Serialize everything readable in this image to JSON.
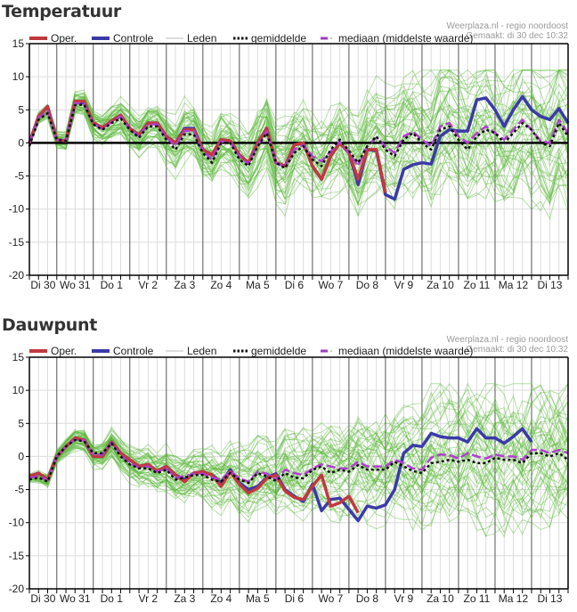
{
  "charts": [
    {
      "title": "Temperatuur",
      "credits": [
        "Weerplaza.nl - regio noordoost",
        "Gemaakt: di 30 dec 10:32"
      ]
    },
    {
      "title": "Dauwpunt",
      "credits": [
        "Weerplaza.nl - regio noordoost",
        "Gemaakt: di 30 dec 10:32"
      ]
    }
  ],
  "legend": [
    {
      "label": "Oper.",
      "color": "#c0393f",
      "style": "solid-thick"
    },
    {
      "label": "Controle",
      "color": "#3b3aa8",
      "style": "solid-thick"
    },
    {
      "label": "Leden",
      "color": "#bcbcbc",
      "style": "thin"
    },
    {
      "label": "gemiddelde",
      "color": "#111111",
      "style": "dotted"
    },
    {
      "label": "mediaan (middelste waarde)",
      "color": "#a03cc0",
      "style": "dashed"
    }
  ],
  "colors": {
    "oper": "#c0393f",
    "controle": "#3b3aa8",
    "leden": "#5cb83a",
    "gemiddelde": "#111111",
    "mediaan": "#b13fd0",
    "grid_minor": "#dcdcdc",
    "grid_major": "#555555"
  },
  "chart_data": [
    {
      "type": "line",
      "title": "Temperatuur",
      "xlabel": "",
      "ylabel": "",
      "ylim": [
        -20,
        15
      ],
      "yticks": [
        15,
        10,
        5,
        0,
        -5,
        -10,
        -15,
        -20
      ],
      "x_step_hours": 6,
      "day_labels": [
        "Di 30",
        "Wo 31",
        "Do 1",
        "Vr 2",
        "Za 3",
        "Zo 4",
        "Ma 5",
        "Di 6",
        "Wo 7",
        "Do 8",
        "Vr 9",
        "Za 10",
        "Zo 11",
        "Ma 12",
        "Di 13"
      ],
      "legend_position": "top",
      "grid": true,
      "series": [
        {
          "name": "Oper.",
          "values": [
            0,
            4,
            5.5,
            0.5,
            0.3,
            6.3,
            6.3,
            3,
            2.3,
            3.3,
            4.2,
            2.2,
            1.2,
            3,
            3,
            1,
            0,
            2,
            2,
            -1,
            -1.8,
            0.5,
            0.3,
            -1.8,
            -3,
            0,
            2.2,
            -3,
            -3.5,
            -0.3,
            0,
            -3.5,
            -5.5,
            -2,
            0,
            -1.5,
            -5.5,
            -1,
            -1,
            -7.5
          ]
        },
        {
          "name": "Controle",
          "values": [
            0,
            4,
            5.5,
            0.5,
            0.3,
            6.1,
            6.1,
            3,
            2.3,
            3.3,
            4.2,
            2.2,
            1.2,
            3,
            3,
            1,
            0,
            2.2,
            2.2,
            -1,
            -1.8,
            0.5,
            0.3,
            -1.8,
            -3,
            0,
            2.2,
            -3,
            -3.5,
            -0.3,
            0,
            -3.5,
            -5.5,
            -2,
            0,
            -1.5,
            -6.3,
            -1,
            -1.2,
            -7.8,
            -8.5,
            -4,
            -3.3,
            -3,
            -3.2,
            1,
            2,
            1.8,
            1.8,
            6.5,
            6.8,
            5,
            2.5,
            5,
            7,
            5,
            4,
            3.5,
            5.2,
            3
          ]
        },
        {
          "name": "gemiddelde",
          "values": [
            -0.5,
            3.5,
            4.5,
            0.5,
            0.3,
            5.7,
            5.8,
            2.8,
            2,
            3,
            3.7,
            2,
            0.8,
            2.5,
            2.5,
            0.5,
            -1,
            1.3,
            1.3,
            -1.5,
            -3,
            0,
            0,
            -2.5,
            -3.5,
            -0.5,
            1.5,
            -3,
            -3.8,
            -1.5,
            -0.5,
            -2.5,
            -3.5,
            -1,
            0.5,
            -1.2,
            -3,
            -0.5,
            1,
            -1,
            -2,
            0.5,
            1.5,
            0,
            -1,
            2,
            2.5,
            0.5,
            -1,
            1,
            2,
            1.5,
            0,
            1.5,
            3,
            2,
            0,
            -0.5,
            3,
            1
          ]
        },
        {
          "name": "mediaan (middelste waarde)",
          "values": [
            0,
            3.8,
            4.8,
            0.5,
            0.3,
            6,
            6,
            2.9,
            2.1,
            3.1,
            4,
            2.1,
            1,
            2.8,
            2.8,
            0.8,
            -0.5,
            1.8,
            1.8,
            -1.2,
            -2.5,
            0.2,
            0.1,
            -2,
            -3.2,
            -0.3,
            1.8,
            -3,
            -3.6,
            -1,
            -0.3,
            -2,
            -2.8,
            -1.3,
            0.2,
            -1.5,
            -3.5,
            -0.5,
            0.8,
            -0.5,
            -1.5,
            1,
            1.7,
            0.5,
            -0.5,
            2.5,
            3,
            1,
            0,
            1.5,
            2.5,
            1.5,
            0.5,
            2,
            3.5,
            2,
            0.3,
            0,
            3.5,
            1.5
          ]
        }
      ],
      "members_band": {
        "description": "approx. 50 ensemble members spreading from ±1 early to roughly -16..+10 by the end"
      }
    },
    {
      "type": "line",
      "title": "Dauwpunt",
      "xlabel": "",
      "ylabel": "",
      "ylim": [
        -20,
        15
      ],
      "yticks": [
        15,
        10,
        5,
        0,
        -5,
        -10,
        -15,
        -20
      ],
      "x_step_hours": 6,
      "day_labels": [
        "Di 30",
        "Wo 31",
        "Do 1",
        "Vr 2",
        "Za 3",
        "Zo 4",
        "Ma 5",
        "Di 6",
        "Wo 7",
        "Do 8",
        "Vr 9",
        "Za 10",
        "Zo 11",
        "Ma 12",
        "Di 13"
      ],
      "legend_position": "top",
      "grid": true,
      "series": [
        {
          "name": "Oper.",
          "values": [
            -3,
            -2.5,
            -3.5,
            0,
            1.5,
            2.8,
            2.5,
            0,
            0,
            2.2,
            0.5,
            -0.5,
            -1.5,
            -1.2,
            -2.2,
            -1.5,
            -2.8,
            -3.8,
            -2.5,
            -2.3,
            -2.8,
            -4.5,
            -2.3,
            -4.2,
            -5.5,
            -4.8,
            -3.3,
            -2.8,
            -5.2,
            -6.2,
            -6.5,
            -4.5,
            -2.8,
            -7.5,
            -7,
            -6,
            -8.5
          ]
        },
        {
          "name": "Controle",
          "values": [
            -3,
            -2.5,
            -3.5,
            0,
            1.5,
            2.7,
            2.5,
            0,
            0,
            2.2,
            0.5,
            -0.5,
            -1.5,
            -1.2,
            -2.2,
            -1.5,
            -2.8,
            -3.5,
            -2.5,
            -2.3,
            -2.8,
            -4,
            -2,
            -4,
            -5,
            -4.5,
            -3.2,
            -2.6,
            -5,
            -6,
            -6.8,
            -4.2,
            -8.2,
            -6.5,
            -6.3,
            -8,
            -9.7,
            -7.5,
            -7.8,
            -7.3,
            -5,
            0.5,
            1.7,
            1.5,
            3.5,
            3,
            2.8,
            2.8,
            2.2,
            4.2,
            2.8,
            2.8,
            2,
            3,
            4.2,
            2.2
          ]
        },
        {
          "name": "gemiddelde",
          "values": [
            -3.5,
            -3.2,
            -3.8,
            0,
            1.5,
            2.5,
            2.3,
            0.5,
            0.5,
            2,
            0,
            -1.2,
            -1.8,
            -1.8,
            -2.5,
            -2,
            -3.5,
            -3.2,
            -2.8,
            -2.8,
            -3.5,
            -3.8,
            -2.5,
            -3.5,
            -4,
            -2.5,
            -3,
            -3.7,
            -2.5,
            -3.2,
            -3.3,
            -2,
            -1.5,
            -2.5,
            -2,
            -2.3,
            -1.3,
            -2,
            -2,
            -2,
            -0.8,
            -1.5,
            -2.2,
            -2.5,
            -1,
            -0.8,
            -0.5,
            -0.8,
            -0.5,
            -1,
            -1,
            -0.2,
            -0.5,
            -0.5,
            -1,
            0.5,
            0.5,
            0,
            0.5,
            -0.5
          ]
        },
        {
          "name": "mediaan (middelste waarde)",
          "values": [
            -3.2,
            -3,
            -3.6,
            0,
            1.5,
            2.6,
            2.4,
            0.3,
            0.3,
            2.1,
            0.2,
            -1,
            -1.7,
            -1.5,
            -2.3,
            -1.8,
            -3.2,
            -3,
            -2.6,
            -2.6,
            -3.2,
            -3.5,
            -2.2,
            -3.3,
            -3.8,
            -2.3,
            -2.6,
            -3.5,
            -2,
            -2.5,
            -2.8,
            -1.8,
            -1.2,
            -1.5,
            -1.8,
            -1.8,
            -0.8,
            -1.5,
            -1.5,
            -1.5,
            -0.5,
            -1,
            -1.8,
            -2,
            -0.2,
            0.3,
            0.2,
            -0.3,
            0.5,
            0,
            -0.3,
            0.3,
            0,
            0,
            -0.5,
            1,
            1,
            0.5,
            1,
            0.5
          ]
        }
      ],
      "members_band": {
        "description": "approx. 50 ensemble members spreading from ±1 early to roughly -17..+9 by the end"
      }
    }
  ]
}
